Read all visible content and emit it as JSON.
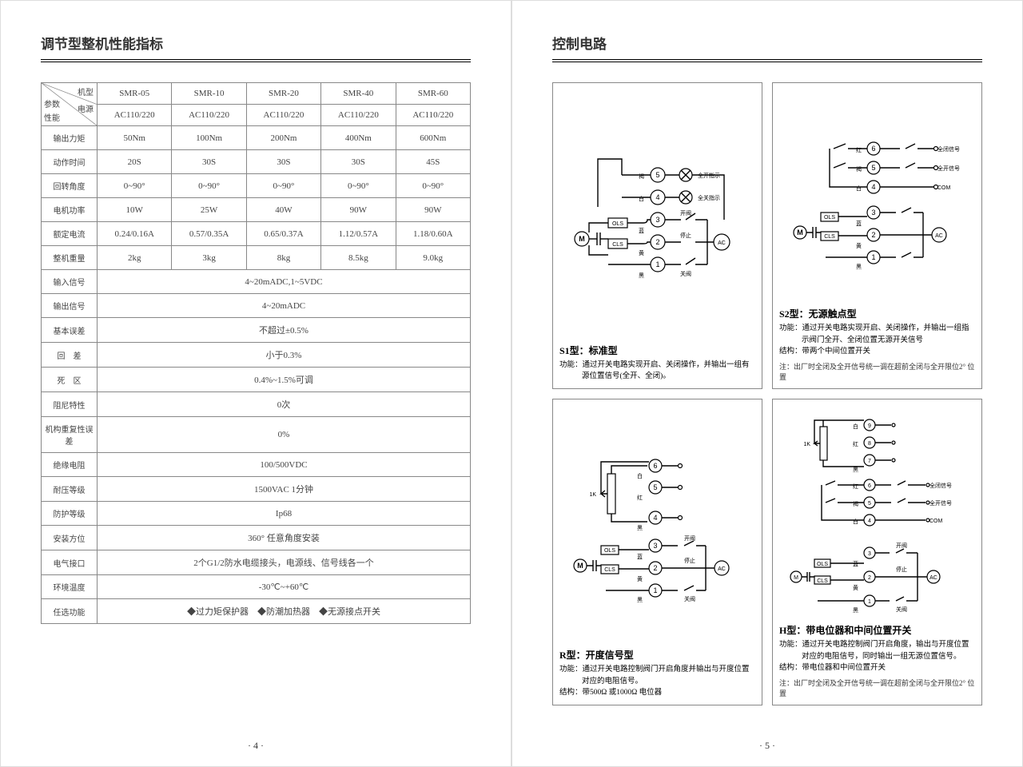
{
  "left_page": {
    "title": "调节型整机性能指标",
    "page_number": "· 4 ·",
    "header_labels": {
      "model": "机型",
      "param": "参数",
      "power": "电源",
      "perf": "性能"
    },
    "models": [
      "SMR-05",
      "SMR-10",
      "SMR-20",
      "SMR-40",
      "SMR-60"
    ],
    "power_row": [
      "AC110/220",
      "AC110/220",
      "AC110/220",
      "AC110/220",
      "AC110/220"
    ],
    "param_rows": [
      {
        "label": "输出力矩",
        "vals": [
          "50Nm",
          "100Nm",
          "200Nm",
          "400Nm",
          "600Nm"
        ]
      },
      {
        "label": "动作时间",
        "vals": [
          "20S",
          "30S",
          "30S",
          "30S",
          "45S"
        ]
      },
      {
        "label": "回转角度",
        "vals": [
          "0~90°",
          "0~90°",
          "0~90°",
          "0~90°",
          "0~90°"
        ]
      },
      {
        "label": "电机功率",
        "vals": [
          "10W",
          "25W",
          "40W",
          "90W",
          "90W"
        ]
      },
      {
        "label": "额定电流",
        "vals": [
          "0.24/0.16A",
          "0.57/0.35A",
          "0.65/0.37A",
          "1.12/0.57A",
          "1.18/0.60A"
        ]
      },
      {
        "label": "整机重量",
        "vals": [
          "2kg",
          "3kg",
          "8kg",
          "8.5kg",
          "9.0kg"
        ]
      }
    ],
    "span_rows": [
      {
        "label": "输入信号",
        "val": "4~20mADC,1~5VDC"
      },
      {
        "label": "输出信号",
        "val": "4~20mADC"
      },
      {
        "label": "基本误差",
        "val": "不超过±0.5%"
      },
      {
        "label": "回　差",
        "val": "小于0.3%"
      },
      {
        "label": "死　区",
        "val": "0.4%~1.5%可调"
      },
      {
        "label": "阻尼特性",
        "val": "0次"
      },
      {
        "label": "机构重复性误差",
        "val": "0%"
      },
      {
        "label": "绝缘电阻",
        "val": "100/500VDC"
      },
      {
        "label": "耐压等级",
        "val": "1500VAC  1分钟"
      },
      {
        "label": "防护等级",
        "val": "Ip68"
      },
      {
        "label": "安装方位",
        "val": "360° 任意角度安装"
      },
      {
        "label": "电气接口",
        "val": "2个G1/2防水电缆接头，电源线、信号线各一个"
      },
      {
        "label": "环境温度",
        "val": "-30℃~+60℃"
      },
      {
        "label": "任选功能",
        "val": "◆过力矩保护器　◆防潮加热器　◆无源接点开关"
      }
    ]
  },
  "right_page": {
    "title": "控制电路",
    "page_number": "· 5 ·",
    "boxes": [
      {
        "type_title": "S1型：标准型",
        "func_label": "功能：",
        "func": "通过开关电路实现开启、关闭操作，并输出一组有源位置信号(全开、全闭)。",
        "struct_label": "",
        "struct": "",
        "note": "",
        "term_white": "白",
        "term_brown": "褐",
        "term_blue": "蓝",
        "term_yellow": "黄",
        "term_black": "黑",
        "lbl_open_ind": "全开指示",
        "lbl_close_ind": "全关指示",
        "lbl_open": "开阀",
        "lbl_stop": "停止",
        "lbl_close": "关阀",
        "ols": "OLS",
        "cls": "CLS",
        "motor": "M",
        "ac": "AC",
        "pins": [
          "1",
          "2",
          "3",
          "4",
          "5"
        ]
      },
      {
        "type_title": "S2型：无源触点型",
        "func_label": "功能：",
        "func": "通过开关电路实现开启、关闭操作，并输出一组指示阀门全开、全闭位置无源开关信号",
        "struct_label": "结构：",
        "struct": "带两个中间位置开关",
        "note": "注：出厂时全闭及全开信号统一调在超前全闭与全开限位2° 位置",
        "term_white": "白",
        "term_brown": "褐",
        "term_blue": "蓝",
        "term_yellow": "黄",
        "term_black": "黑",
        "term_red": "红",
        "lbl_close_sig": "全闭信号",
        "lbl_open_sig": "全开信号",
        "lbl_com": "COM",
        "lbl_open": "开阀",
        "lbl_stop": "停止",
        "lbl_close": "关阀",
        "ols": "OLS",
        "cls": "CLS",
        "motor": "M",
        "ac": "AC",
        "pins": [
          "1",
          "2",
          "3",
          "4",
          "5",
          "6"
        ]
      },
      {
        "type_title": "R型：开度信号型",
        "func_label": "功能：",
        "func": "通过开关电路控制阀门开启角度并输出与开度位置对应的电阻信号。",
        "struct_label": "结构：",
        "struct": "带500Ω 或1000Ω 电位器",
        "note": "",
        "term_white": "白",
        "term_brown": "褐",
        "term_blue": "蓝",
        "term_yellow": "黄",
        "term_black": "黑",
        "term_red": "红",
        "lbl_open": "开阀",
        "lbl_stop": "停止",
        "lbl_close": "关阀",
        "pot": "1K",
        "ols": "OLS",
        "cls": "CLS",
        "motor": "M",
        "ac": "AC",
        "pins": [
          "1",
          "2",
          "3",
          "4",
          "5",
          "6"
        ]
      },
      {
        "type_title": "H型：带电位器和中间位置开关",
        "func_label": "功能：",
        "func": "通过开关电路控制阀门开启角度，输出与开度位置对应的电阻信号，同时输出一组无源位置信号。",
        "struct_label": "结构：",
        "struct": "带电位器和中间位置开关",
        "note": "注：出厂时全闭及全开信号统一调在超前全闭与全开限位2° 位置",
        "term_white": "白",
        "term_brown": "褐",
        "term_blue": "蓝",
        "term_yellow": "黄",
        "term_black": "黑",
        "term_red": "红",
        "lbl_close_sig": "全闭信号",
        "lbl_open_sig": "全开信号",
        "lbl_com": "COM",
        "lbl_open": "开阀",
        "lbl_stop": "停止",
        "lbl_close": "关阀",
        "pot": "1K",
        "ols": "OLS",
        "cls": "CLS",
        "motor": "M",
        "ac": "AC",
        "pins": [
          "1",
          "2",
          "3",
          "4",
          "5",
          "6",
          "7",
          "8",
          "9"
        ]
      }
    ]
  },
  "colors": {
    "page_bg": "#ffffff",
    "body_bg": "#e8e8e8",
    "border": "#888888",
    "text": "#333333"
  }
}
